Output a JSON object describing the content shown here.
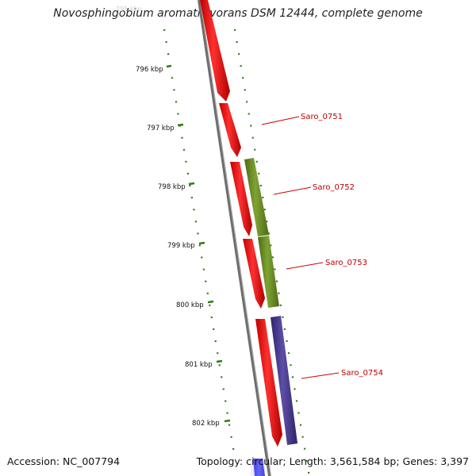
{
  "title": "Novosphingobium aromaticivorans DSM 12444, complete genome",
  "accession": "Accession: NC_007794",
  "summary": "Topology: circular; Length: 3,561,584 bp; Genes: 3,397",
  "colors": {
    "backbone": "#7a7a7a",
    "tick": "#2f7a18",
    "label": "#c00000",
    "forward_gene": "#ff1a1a",
    "gene_1": "#6b8f26",
    "gene_2": "#4a3a8c",
    "gene_3": "#1a1aff"
  },
  "axis": {
    "unit": "kbp",
    "kbp_labels": [
      "796 kbp",
      "797 kbp",
      "798 kbp",
      "799 kbp",
      "800 kbp",
      "801 kbp",
      "802 kbp"
    ]
  },
  "gene_labels": [
    "Saro_0751",
    "Saro_0752",
    "Saro_0753",
    "Saro_0754"
  ]
}
